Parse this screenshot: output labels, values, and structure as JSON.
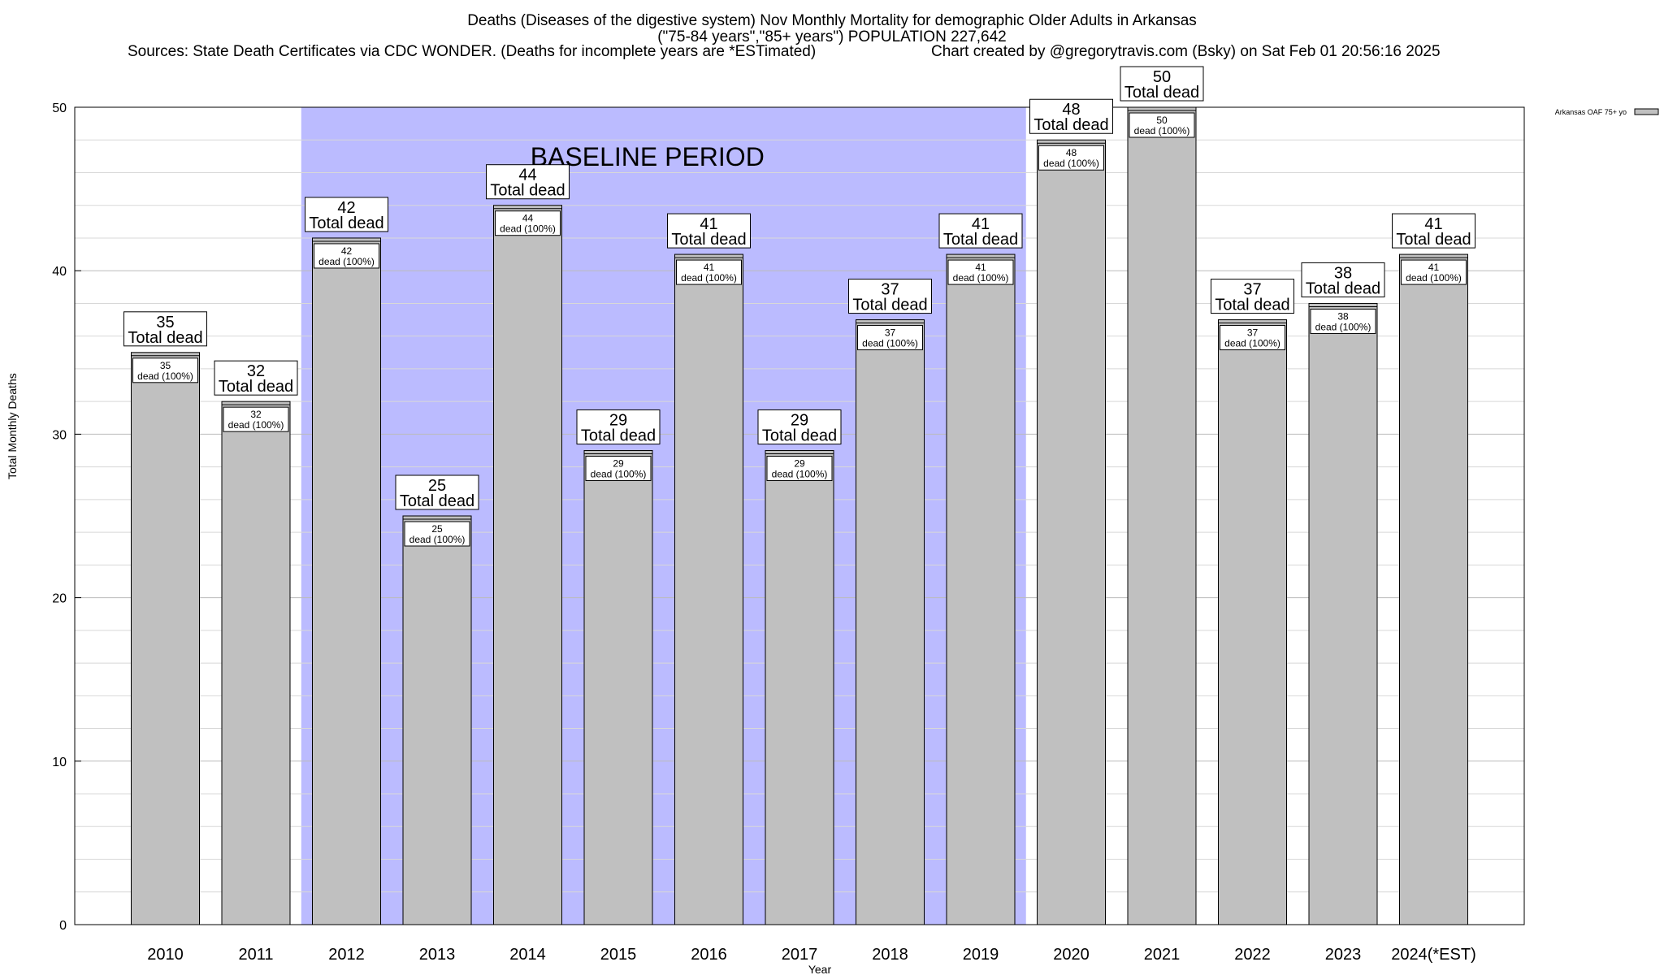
{
  "header": {
    "title_line1": "Deaths (Diseases of the digestive system) Nov Monthly Mortality for demographic Older Adults in Arkansas",
    "title_line2": "(\"75-84 years\",\"85+ years\") POPULATION 227,642",
    "sources": "Sources: State Death Certificates via CDC WONDER. (Deaths for incomplete years are *ESTimated)",
    "credit": "Chart created by @gregorytravis.com (Bsky) on Sat Feb 01 20:56:16 2025"
  },
  "chart_data": {
    "type": "bar",
    "title": "Deaths (Diseases of the digestive system) Nov Monthly Mortality for demographic Older Adults in Arkansas",
    "xlabel": "Year",
    "ylabel": "Total Monthly Deaths",
    "ylim": [
      0,
      50
    ],
    "yticks": [
      0,
      10,
      20,
      30,
      40,
      50
    ],
    "grid": true,
    "legend": {
      "position": "top-right",
      "label": "Arkansas OAF 75+ yo"
    },
    "categories": [
      "2010",
      "2011",
      "2012",
      "2013",
      "2014",
      "2015",
      "2016",
      "2017",
      "2018",
      "2019",
      "2020",
      "2021",
      "2022",
      "2023",
      "2024(*EST)"
    ],
    "series": [
      {
        "name": "Arkansas OAF 75+ yo",
        "values": [
          35,
          32,
          42,
          25,
          44,
          29,
          41,
          29,
          37,
          41,
          48,
          50,
          37,
          38,
          41
        ]
      }
    ],
    "total_label": "Total dead",
    "inner_label": "dead (100%)",
    "baseline": {
      "label": "BASELINE PERIOD",
      "from": "2012",
      "to": "2019"
    },
    "colors": {
      "bar": "#c0c0c0",
      "baseline": "#bbbbff",
      "grid": "#d0d0d0"
    }
  }
}
